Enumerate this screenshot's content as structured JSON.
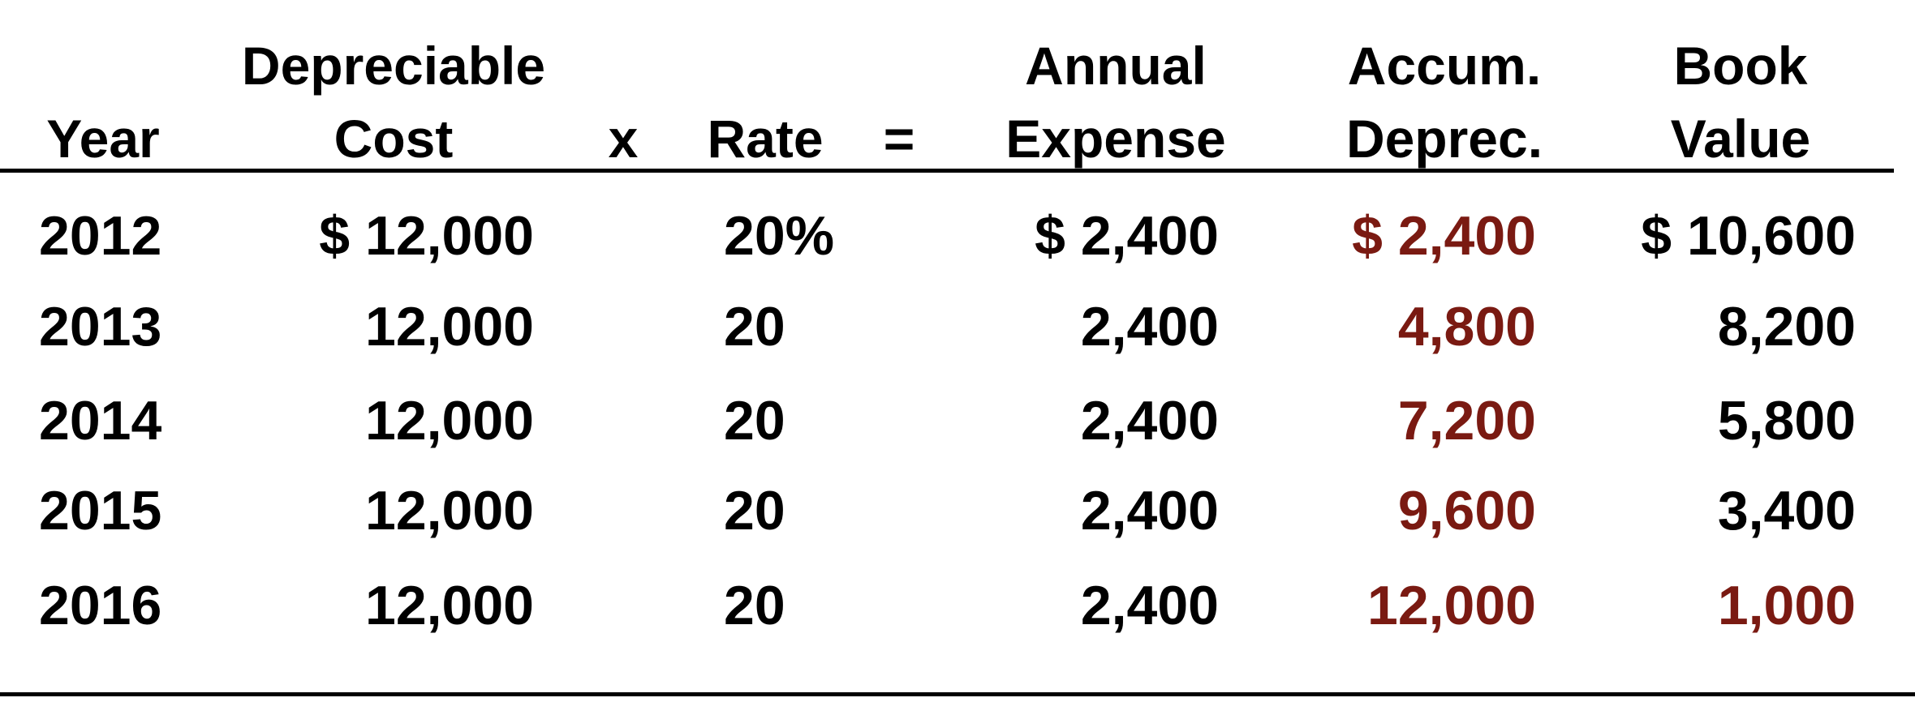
{
  "headers": {
    "year": "Year",
    "depreciable": "Depreciable",
    "cost": "Cost",
    "times": "x",
    "rate": "Rate",
    "equals": "=",
    "annual": "Annual",
    "expense": "Expense",
    "accum": "Accum.",
    "deprec": "Deprec.",
    "book": "Book",
    "value": "Value"
  },
  "rows": [
    {
      "year": "2012",
      "cost": "$ 12,000",
      "rate": "20%",
      "expense": "$ 2,400",
      "accum": "$ 2,400",
      "book": "$ 10,600"
    },
    {
      "year": "2013",
      "cost": "12,000",
      "rate": "20",
      "expense": "2,400",
      "accum": "4,800",
      "book": "8,200"
    },
    {
      "year": "2014",
      "cost": "12,000",
      "rate": "20",
      "expense": "2,400",
      "accum": "7,200",
      "book": "5,800"
    },
    {
      "year": "2015",
      "cost": "12,000",
      "rate": "20",
      "expense": "2,400",
      "accum": "9,600",
      "book": "3,400"
    },
    {
      "year": "2016",
      "cost": "12,000",
      "rate": "20",
      "expense": "2,400",
      "accum": "12,000",
      "book": "1,000"
    }
  ],
  "colors": {
    "text": "#000000",
    "highlight": "#7a1a12"
  }
}
